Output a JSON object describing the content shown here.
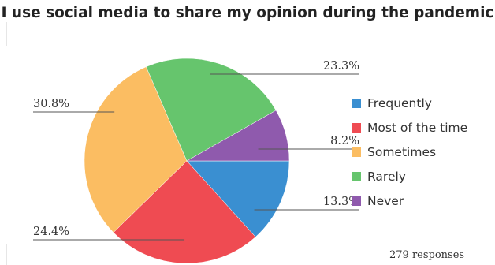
{
  "chart_data": {
    "type": "pie",
    "title": "I use social media to share my opinion during the pandemic",
    "categories": [
      "Frequently",
      "Most of the time",
      "Sometimes",
      "Rarely",
      "Never"
    ],
    "values": [
      13.3,
      24.4,
      30.8,
      23.3,
      8.2
    ],
    "value_labels": [
      "13.3%",
      "24.4%",
      "30.8%",
      "23.3%",
      "8.2%"
    ],
    "colors": [
      "#3a8fd1",
      "#ef4b52",
      "#fbbd62",
      "#66c56d",
      "#8f5aad"
    ],
    "legend_position": "right",
    "note": "279 responses"
  }
}
